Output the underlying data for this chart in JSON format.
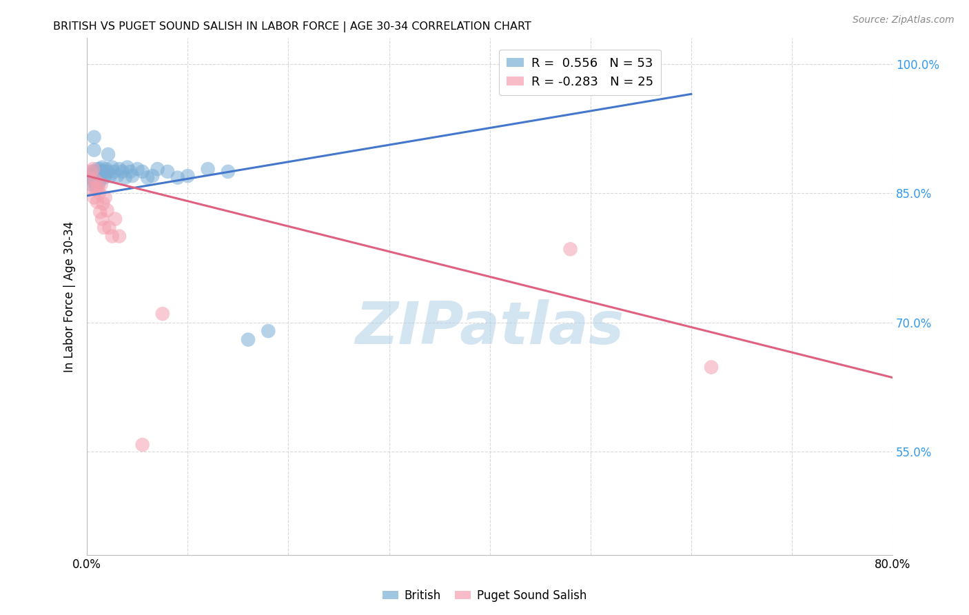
{
  "title": "BRITISH VS PUGET SOUND SALISH IN LABOR FORCE | AGE 30-34 CORRELATION CHART",
  "source": "Source: ZipAtlas.com",
  "ylabel": "In Labor Force | Age 30-34",
  "xlim": [
    0.0,
    0.8
  ],
  "ylim": [
    0.43,
    1.03
  ],
  "xticks": [
    0.0,
    0.1,
    0.2,
    0.3,
    0.4,
    0.5,
    0.6,
    0.7,
    0.8
  ],
  "xticklabels": [
    "0.0%",
    "",
    "",
    "",
    "",
    "",
    "",
    "",
    "80.0%"
  ],
  "yticks": [
    0.55,
    0.7,
    0.85,
    1.0
  ],
  "yticklabels": [
    "55.0%",
    "70.0%",
    "85.0%",
    "100.0%"
  ],
  "british_R": 0.556,
  "british_N": 53,
  "salish_R": -0.283,
  "salish_N": 25,
  "british_color": "#7aaed6",
  "salish_color": "#f4a0b0",
  "british_line_color": "#4477cc",
  "salish_line_color": "#e06080",
  "watermark": "ZIPatlas",
  "watermark_color": "#b8d4ea",
  "grid_color": "#d8d8d8",
  "british_x": [
    0.002,
    0.003,
    0.004,
    0.005,
    0.005,
    0.006,
    0.007,
    0.007,
    0.008,
    0.008,
    0.009,
    0.009,
    0.009,
    0.01,
    0.01,
    0.01,
    0.01,
    0.011,
    0.011,
    0.012,
    0.012,
    0.013,
    0.013,
    0.014,
    0.015,
    0.016,
    0.017,
    0.018,
    0.019,
    0.02,
    0.021,
    0.023,
    0.025,
    0.027,
    0.03,
    0.032,
    0.035,
    0.038,
    0.04,
    0.043,
    0.045,
    0.05,
    0.055,
    0.06,
    0.065,
    0.07,
    0.08,
    0.09,
    0.1,
    0.12,
    0.14,
    0.16,
    0.18
  ],
  "british_y": [
    0.868,
    0.872,
    0.86,
    0.875,
    0.868,
    0.87,
    0.9,
    0.915,
    0.862,
    0.875,
    0.858,
    0.865,
    0.875,
    0.862,
    0.87,
    0.875,
    0.878,
    0.863,
    0.87,
    0.862,
    0.875,
    0.87,
    0.878,
    0.875,
    0.88,
    0.875,
    0.868,
    0.87,
    0.878,
    0.875,
    0.895,
    0.87,
    0.88,
    0.875,
    0.87,
    0.878,
    0.875,
    0.868,
    0.88,
    0.875,
    0.87,
    0.878,
    0.875,
    0.868,
    0.87,
    0.878,
    0.875,
    0.868,
    0.87,
    0.878,
    0.875,
    0.68,
    0.69
  ],
  "salish_x": [
    0.003,
    0.004,
    0.006,
    0.006,
    0.007,
    0.008,
    0.009,
    0.01,
    0.011,
    0.012,
    0.013,
    0.014,
    0.015,
    0.016,
    0.017,
    0.018,
    0.02,
    0.022,
    0.025,
    0.028,
    0.032,
    0.48,
    0.62,
    0.055,
    0.075
  ],
  "salish_y": [
    0.868,
    0.875,
    0.855,
    0.878,
    0.845,
    0.865,
    0.855,
    0.84,
    0.858,
    0.85,
    0.828,
    0.86,
    0.82,
    0.838,
    0.81,
    0.845,
    0.83,
    0.81,
    0.8,
    0.82,
    0.8,
    0.785,
    0.648,
    0.558,
    0.71
  ],
  "british_line_x": [
    0.0,
    0.6
  ],
  "british_line_y": [
    0.847,
    0.965
  ],
  "salish_line_x": [
    0.0,
    0.8
  ],
  "salish_line_y": [
    0.87,
    0.636
  ]
}
